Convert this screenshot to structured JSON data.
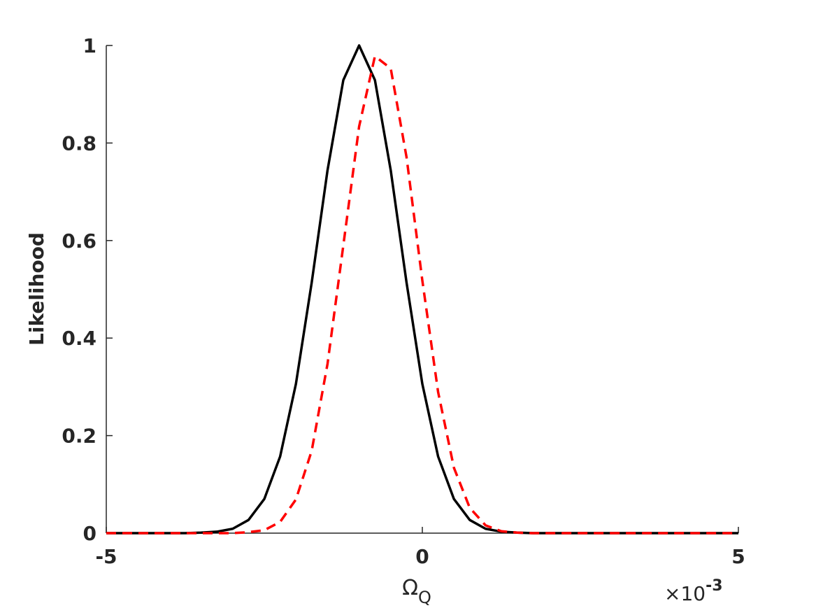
{
  "chart_data": {
    "type": "line",
    "ylabel": "Likelihood",
    "xlabel": "Ω",
    "xlabel_subscript": "Q",
    "x_multiplier": {
      "base": "×10",
      "exponent": "-3"
    },
    "x": [
      -5,
      -4.75,
      -4.5,
      -4.25,
      -4,
      -3.75,
      -3.5,
      -3.25,
      -3,
      -2.75,
      -2.5,
      -2.25,
      -2,
      -1.75,
      -1.5,
      -1.25,
      -1,
      -0.75,
      -0.5,
      -0.25,
      0,
      0.25,
      0.5,
      0.75,
      1,
      1.25,
      1.5,
      1.75,
      2,
      2.25,
      2.5,
      2.75,
      3,
      3.25,
      3.5,
      3.75,
      4,
      4.25,
      4.5,
      4.75,
      5
    ],
    "series": [
      {
        "color": "#000000",
        "dash": "solid",
        "values": [
          0,
          0,
          0,
          0,
          0,
          0,
          0.001,
          0.003,
          0.009,
          0.027,
          0.07,
          0.157,
          0.306,
          0.514,
          0.744,
          0.929,
          1,
          0.929,
          0.744,
          0.514,
          0.306,
          0.157,
          0.07,
          0.027,
          0.009,
          0.003,
          0.001,
          0,
          0,
          0,
          0,
          0,
          0,
          0,
          0,
          0,
          0,
          0,
          0,
          0,
          0
        ]
      },
      {
        "color": "#ff0000",
        "dash": "dashed",
        "values": [
          0,
          0,
          0,
          0,
          0,
          0,
          0,
          0,
          0,
          0.002,
          0.006,
          0.023,
          0.069,
          0.169,
          0.347,
          0.59,
          0.834,
          0.978,
          0.953,
          0.771,
          0.518,
          0.289,
          0.134,
          0.052,
          0.016,
          0.004,
          0.001,
          0,
          0,
          0,
          0,
          0,
          0,
          0,
          0,
          0,
          0,
          0,
          0,
          0,
          0
        ]
      }
    ],
    "xlim": [
      -5,
      5
    ],
    "xticks": [
      -5,
      0,
      5
    ],
    "ylim": [
      0,
      1
    ],
    "yticks": [
      0,
      0.2,
      0.4,
      0.6,
      0.8,
      1
    ],
    "grid": false
  }
}
